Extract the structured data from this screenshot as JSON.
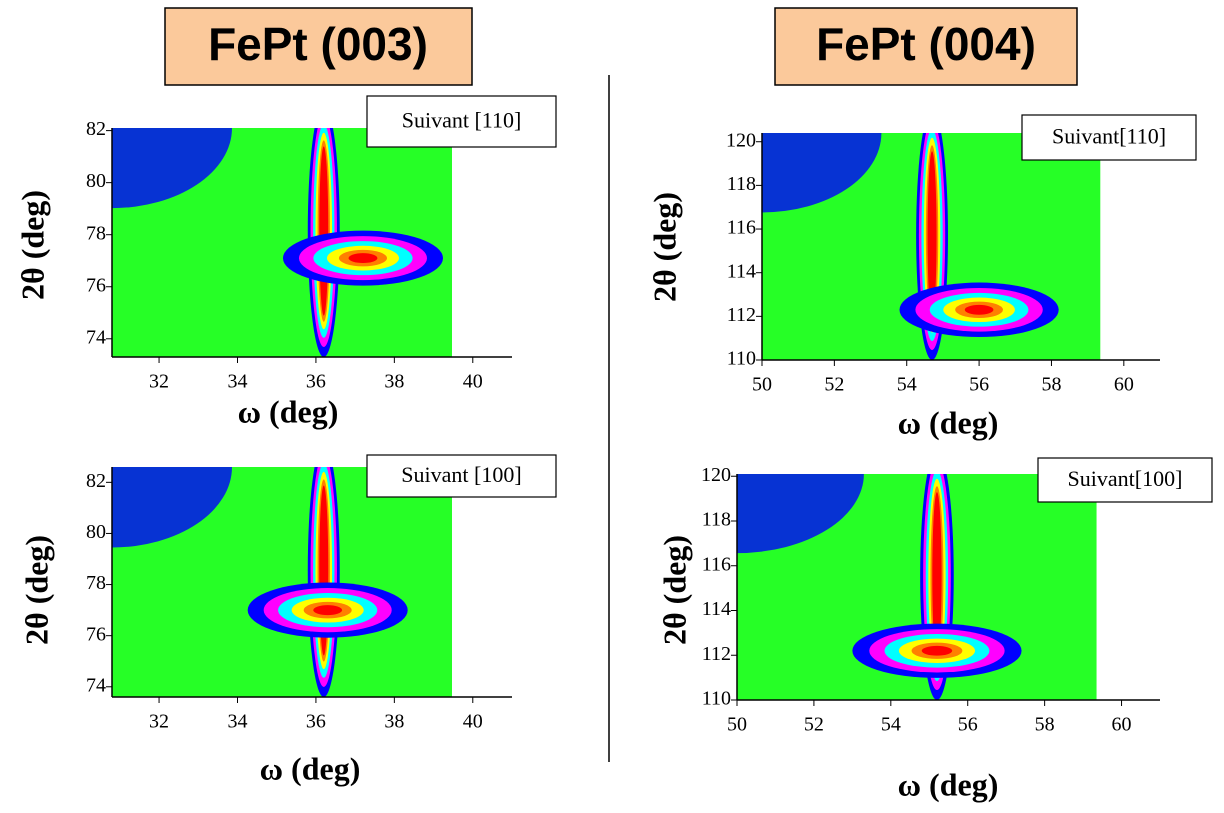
{
  "titles": [
    "FePt  (003)",
    "FePt  (004)"
  ],
  "chart_data": [
    {
      "type": "contour",
      "annotation": "Suivant [110]",
      "x_label": "ω (deg)",
      "y_label": "2θ (deg)",
      "xlim": [
        30.8,
        41
      ],
      "xticks": [
        32,
        34,
        36,
        38,
        40
      ],
      "ylim": [
        73.3,
        82.1
      ],
      "yticks": [
        74,
        76,
        78,
        80,
        82
      ],
      "peak_x": 37.2,
      "peak_y": 77.1,
      "streak_x": 36.2,
      "colors": [
        "#00ff00",
        "#0000ff",
        "#ff00ff",
        "#00ffff",
        "#ffff00",
        "#ff8000",
        "#ff0000"
      ]
    },
    {
      "type": "contour",
      "annotation": "Suivant [100]",
      "x_label": "ω (deg)",
      "y_label": "2θ (deg)",
      "xlim": [
        30.8,
        41
      ],
      "xticks": [
        32,
        34,
        36,
        38,
        40
      ],
      "ylim": [
        73.6,
        82.6
      ],
      "yticks": [
        74,
        76,
        78,
        80,
        82
      ],
      "peak_x": 36.3,
      "peak_y": 77.0,
      "streak_x": 36.2,
      "colors": [
        "#00ff00",
        "#0000ff",
        "#ff00ff",
        "#00ffff",
        "#ffff00",
        "#ff8000",
        "#ff0000"
      ]
    },
    {
      "type": "contour",
      "annotation": "Suivant[110]",
      "x_label": "ω (deg)",
      "y_label": "2θ (deg)",
      "xlim": [
        50,
        61
      ],
      "xticks": [
        50,
        52,
        54,
        56,
        58,
        60
      ],
      "ylim": [
        110,
        120.4
      ],
      "yticks": [
        110,
        112,
        114,
        116,
        118,
        120
      ],
      "peak_x": 56.0,
      "peak_y": 112.3,
      "streak_x": 54.7,
      "colors": [
        "#00ff00",
        "#0000ff",
        "#ff00ff",
        "#00ffff",
        "#ffff00",
        "#ff8000",
        "#ff0000"
      ]
    },
    {
      "type": "contour",
      "annotation": "Suivant[100]",
      "x_label": "ω (deg)",
      "y_label": "2θ (deg)",
      "xlim": [
        50,
        61
      ],
      "xticks": [
        50,
        52,
        54,
        56,
        58,
        60
      ],
      "ylim": [
        110,
        120.1
      ],
      "yticks": [
        110,
        112,
        114,
        116,
        118,
        120
      ],
      "peak_x": 55.2,
      "peak_y": 112.2,
      "streak_x": 55.2,
      "colors": [
        "#00ff00",
        "#0000ff",
        "#ff00ff",
        "#00ffff",
        "#ffff00",
        "#ff8000",
        "#ff0000"
      ]
    }
  ]
}
